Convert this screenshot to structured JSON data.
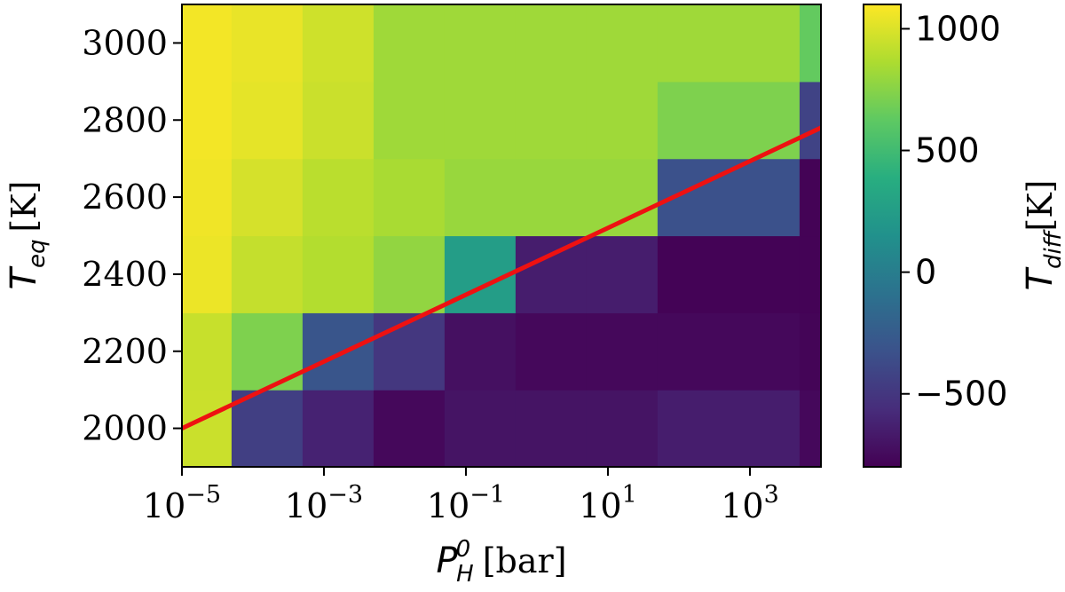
{
  "chart_data": {
    "type": "heatmap",
    "x_axis": {
      "label_math": "P",
      "label_sub": "H",
      "label_sup": "0",
      "label_unit": "[bar]",
      "scale": "log",
      "range": [
        1e-05,
        10000
      ],
      "ticks": [
        {
          "base": "10",
          "exp": "−5",
          "value": 1e-05
        },
        {
          "base": "10",
          "exp": "−3",
          "value": 0.001
        },
        {
          "base": "10",
          "exp": "−1",
          "value": 0.1
        },
        {
          "base": "10",
          "exp": "1",
          "value": 10
        },
        {
          "base": "10",
          "exp": "3",
          "value": 1000
        }
      ]
    },
    "y_axis": {
      "label_math": "T",
      "label_sub": "eq",
      "label_unit": "[K]",
      "range": [
        1900,
        3100
      ],
      "ticks": [
        "2000",
        "2200",
        "2400",
        "2600",
        "2800",
        "3000"
      ]
    },
    "colorbar": {
      "label_math": "T",
      "label_sub": "diff",
      "label_unit": "[K]",
      "range": [
        -800,
        1100
      ],
      "ticks": [
        "−500",
        "0",
        "500",
        "1000"
      ],
      "tick_values": [
        -500,
        0,
        500,
        1000
      ],
      "colormap": "viridis"
    },
    "x_edges": [
      1e-05,
      5e-05,
      0.0005,
      0.005,
      0.05,
      0.5,
      5,
      50,
      5000,
      10000
    ],
    "y_edges": [
      1900,
      2100,
      2300,
      2500,
      2700,
      2900,
      3100
    ],
    "grid_values": [
      [
        950,
        -450,
        -620,
        -760,
        -700,
        -700,
        -700,
        -650,
        -760
      ],
      [
        940,
        720,
        -300,
        -500,
        -720,
        -760,
        -760,
        -760,
        -780
      ],
      [
        1050,
        930,
        880,
        780,
        250,
        -650,
        -650,
        -790,
        -790
      ],
      [
        1060,
        980,
        900,
        850,
        800,
        800,
        800,
        -330,
        -790
      ],
      [
        1070,
        1030,
        950,
        820,
        820,
        820,
        820,
        720,
        -420
      ],
      [
        1070,
        1040,
        960,
        820,
        820,
        820,
        820,
        820,
        640
      ]
    ],
    "line": {
      "color": "#ee1111",
      "x": [
        1e-05,
        10000
      ],
      "y": [
        2000,
        2780
      ]
    },
    "grid": false
  }
}
